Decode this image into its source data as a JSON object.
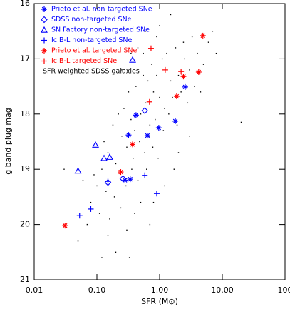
{
  "chart_data": {
    "type": "scatter",
    "x_label": "SFR (M⊙)",
    "y_label": "g band plug mag",
    "xlim": [
      0.01,
      100
    ],
    "xscale": "log",
    "xticks": [
      0.01,
      {
        "value": 0.1,
        "label": "0.10"
      },
      {
        "value": 1,
        "label": "1.00"
      },
      {
        "value": 10,
        "label": "10.00"
      },
      100
    ],
    "ylim": [
      16,
      21
    ],
    "yaxis_inverted": true,
    "yticks": [
      16,
      17,
      18,
      19,
      20,
      21
    ],
    "legend": "upper left",
    "series": [
      {
        "name": "Prieto et al. non-targeted SNe",
        "color": "#0000ff",
        "marker": "asterisk",
        "x": [
          0.32,
          0.97,
          1.78,
          2.56,
          0.34,
          0.28,
          0.64,
          0.42
        ],
        "y": [
          18.38,
          18.25,
          18.13,
          17.51,
          19.18,
          19.2,
          18.39,
          18.02
        ]
      },
      {
        "name": "SDSS non-targeted SNe",
        "color": "#0000ff",
        "marker": "diamond",
        "x": [
          0.15,
          0.26,
          0.58
        ],
        "y": [
          19.24,
          19.17,
          17.94
        ]
      },
      {
        "name": "SN Factory non-targeted SNe",
        "color": "#0000ff",
        "marker": "triangle",
        "x": [
          0.37,
          0.13,
          0.05,
          0.095,
          0.16
        ],
        "y": [
          17.02,
          18.8,
          19.03,
          18.56,
          18.78
        ]
      },
      {
        "name": "Ic B-L non-targeted SNe",
        "color": "#0000ff",
        "marker": "plus",
        "x": [
          0.053,
          0.08,
          0.9,
          0.58,
          0.15
        ],
        "y": [
          19.84,
          19.72,
          19.44,
          19.11,
          19.22
        ]
      },
      {
        "name": "Prieto et al. targeted SNe",
        "color": "#ff0000",
        "marker": "asterisk",
        "x": [
          0.031,
          4.9,
          4.2,
          2.4,
          1.87,
          0.37,
          0.24
        ],
        "y": [
          20.02,
          16.58,
          17.24,
          17.32,
          17.68,
          18.55,
          19.05
        ]
      },
      {
        "name": "Ic B-L targeted SNe",
        "color": "#ff0000",
        "marker": "plus",
        "x": [
          1.23,
          0.69,
          2.2,
          0.73
        ],
        "y": [
          17.2,
          17.78,
          17.23,
          16.81
        ]
      },
      {
        "name": "SFR weighted SDSS galaxies",
        "color": "#000000",
        "marker": "dot",
        "x": [
          0.1,
          0.12,
          0.15,
          0.2,
          0.25,
          0.3,
          0.35,
          0.4,
          0.5,
          0.6,
          0.7,
          0.8,
          1.0,
          1.2,
          1.5,
          2.0,
          2.5,
          3.0,
          4.0,
          5.0,
          0.08,
          0.09,
          0.11,
          0.13,
          0.14,
          0.16,
          0.18,
          0.19,
          0.22,
          0.24,
          0.27,
          0.29,
          0.32,
          0.36,
          0.38,
          0.42,
          0.45,
          0.48,
          0.55,
          0.58,
          0.62,
          0.65,
          0.68,
          0.75,
          0.78,
          0.85,
          0.9,
          0.95,
          1.1,
          1.15,
          1.3,
          1.4,
          1.6,
          1.8,
          1.9,
          2.2,
          2.4,
          2.8,
          3.3,
          3.6,
          4.5,
          6.0,
          7.0,
          8.0,
          0.06,
          0.07,
          0.05,
          0.15,
          0.2,
          0.3,
          0.4,
          0.5,
          0.25,
          0.35,
          0.45,
          0.6,
          1.0,
          1.5,
          0.8,
          1.2,
          2.0,
          3.0,
          1.7,
          0.9,
          0.55,
          0.7,
          0.12,
          0.33,
          20,
          0.03
        ],
        "y": [
          19.3,
          19.0,
          18.7,
          18.9,
          18.4,
          18.6,
          18.1,
          18.3,
          18.0,
          17.8,
          18.2,
          17.6,
          17.7,
          17.9,
          17.4,
          17.3,
          17.0,
          17.2,
          16.9,
          17.1,
          19.6,
          19.1,
          19.8,
          18.5,
          19.4,
          19.9,
          18.2,
          19.5,
          18.0,
          19.7,
          17.9,
          19.3,
          17.6,
          19.0,
          18.8,
          17.5,
          19.2,
          18.5,
          17.3,
          18.7,
          19.0,
          17.4,
          18.4,
          17.1,
          18.6,
          18.1,
          17.3,
          18.8,
          17.0,
          18.3,
          16.9,
          18.0,
          17.7,
          16.8,
          18.2,
          17.6,
          16.7,
          17.8,
          16.6,
          17.5,
          17.6,
          16.7,
          16.5,
          16.9,
          19.2,
          20.0,
          20.3,
          20.2,
          20.5,
          20.1,
          19.8,
          19.6,
          17.2,
          16.9,
          16.8,
          16.5,
          16.4,
          16.2,
          19.6,
          19.3,
          18.7,
          18.4,
          19.0,
          16.6,
          16.9,
          20.0,
          20.6,
          20.6,
          18.15,
          19.0
        ]
      }
    ]
  }
}
